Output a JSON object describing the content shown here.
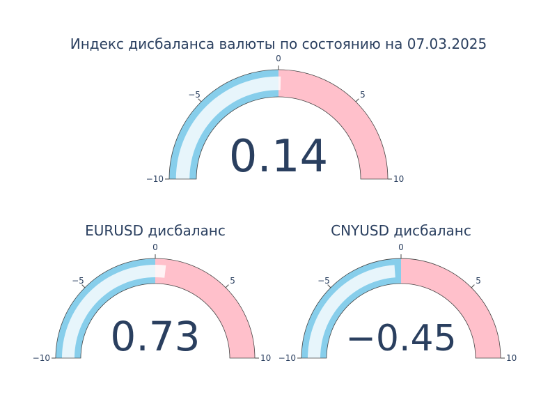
{
  "chart_data": [
    {
      "type": "gauge",
      "title": "Индекс дисбаланса валюты по состоянию на 07.03.2025",
      "value": 0.14,
      "value_label": "0.14",
      "range": [
        -10,
        10
      ],
      "ticks": [
        -10,
        -5,
        0,
        5,
        10
      ],
      "tick_labels": [
        "−10",
        "−5",
        "0",
        "5",
        "10"
      ],
      "steps": [
        {
          "range": [
            -10,
            0
          ],
          "color": "#87CEEB"
        },
        {
          "range": [
            0,
            10
          ],
          "color": "#FFC0CB"
        }
      ],
      "bar_color": "rgba(255,255,255,0.8)"
    },
    {
      "type": "gauge",
      "title": "EURUSD дисбаланс",
      "value": 0.73,
      "value_label": "0.73",
      "range": [
        -10,
        10
      ],
      "ticks": [
        -10,
        -5,
        0,
        5,
        10
      ],
      "tick_labels": [
        "−10",
        "−5",
        "0",
        "5",
        "10"
      ],
      "steps": [
        {
          "range": [
            -10,
            0
          ],
          "color": "#87CEEB"
        },
        {
          "range": [
            0,
            10
          ],
          "color": "#FFC0CB"
        }
      ],
      "bar_color": "rgba(255,255,255,0.8)"
    },
    {
      "type": "gauge",
      "title": "CNYUSD дисбаланс",
      "value": -0.45,
      "value_label": "−0.45",
      "range": [
        -10,
        10
      ],
      "ticks": [
        -10,
        -5,
        0,
        5,
        10
      ],
      "tick_labels": [
        "−10",
        "−5",
        "0",
        "5",
        "10"
      ],
      "steps": [
        {
          "range": [
            -10,
            0
          ],
          "color": "#87CEEB"
        },
        {
          "range": [
            0,
            10
          ],
          "color": "#FFC0CB"
        }
      ],
      "bar_color": "rgba(255,255,255,0.8)"
    }
  ]
}
